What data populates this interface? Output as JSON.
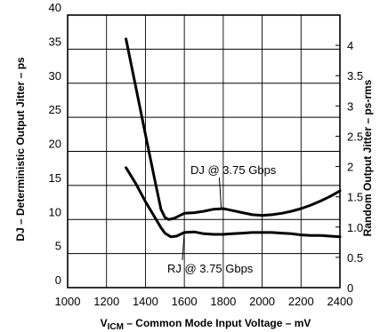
{
  "chart_data": {
    "type": "line",
    "x_axis": {
      "label_main": "V",
      "label_sub": "ICM",
      "label_rest": " – Common Mode Input Voltage – mV",
      "min": 1000,
      "max": 2400,
      "ticks": [
        1000,
        1200,
        1400,
        1600,
        1800,
        2000,
        2200,
        2400
      ]
    },
    "y_left": {
      "label": "DJ – Deterministic Output Jitter – ps",
      "min": 0,
      "max": 40,
      "ticks": [
        0,
        5,
        10,
        15,
        20,
        25,
        30,
        35,
        40
      ]
    },
    "y_right": {
      "label": "Random Output Jitter – ps-rms",
      "min": 0,
      "max": 4.5,
      "ticks": [
        0,
        0.5,
        1,
        1.5,
        2,
        2.5,
        3,
        3.5,
        4
      ],
      "tick_labels": [
        "0",
        "0.5",
        "1.0",
        "1.5",
        "2",
        "2.5",
        "3",
        "3.5",
        "4"
      ]
    },
    "grid": true,
    "series": [
      {
        "name": "DJ @ 3.75 Gbps",
        "axis": "left",
        "x": [
          1300,
          1350,
          1400,
          1450,
          1480,
          1500,
          1520,
          1550,
          1600,
          1650,
          1700,
          1750,
          1800,
          1850,
          1900,
          1950,
          2000,
          2050,
          2100,
          2150,
          2200,
          2250,
          2300,
          2350,
          2400
        ],
        "y": [
          36.5,
          29.5,
          22.5,
          15.5,
          11.5,
          10.3,
          10.0,
          10.2,
          10.9,
          11.0,
          11.2,
          11.5,
          11.6,
          11.3,
          11.0,
          10.7,
          10.6,
          10.7,
          10.9,
          11.2,
          11.6,
          12.1,
          12.7,
          13.4,
          14.2
        ]
      },
      {
        "name": "RJ @ 3.75 Gbps",
        "axis": "right",
        "x": [
          1300,
          1350,
          1400,
          1450,
          1480,
          1500,
          1530,
          1560,
          1600,
          1650,
          1700,
          1750,
          1800,
          1850,
          1900,
          1950,
          2000,
          2050,
          2100,
          2150,
          2200,
          2250,
          2300,
          2350,
          2400
        ],
        "y": [
          1.98,
          1.72,
          1.42,
          1.15,
          0.99,
          0.9,
          0.84,
          0.85,
          0.91,
          0.92,
          0.89,
          0.88,
          0.88,
          0.89,
          0.9,
          0.91,
          0.91,
          0.91,
          0.9,
          0.89,
          0.87,
          0.86,
          0.86,
          0.85,
          0.84
        ]
      }
    ],
    "annotations": [
      {
        "text": "DJ @ 3.75 Gbps",
        "series": "DJ @ 3.75 Gbps"
      },
      {
        "text": "RJ @ 3.75 Gbps",
        "series": "RJ @ 3.75 Gbps"
      }
    ]
  }
}
